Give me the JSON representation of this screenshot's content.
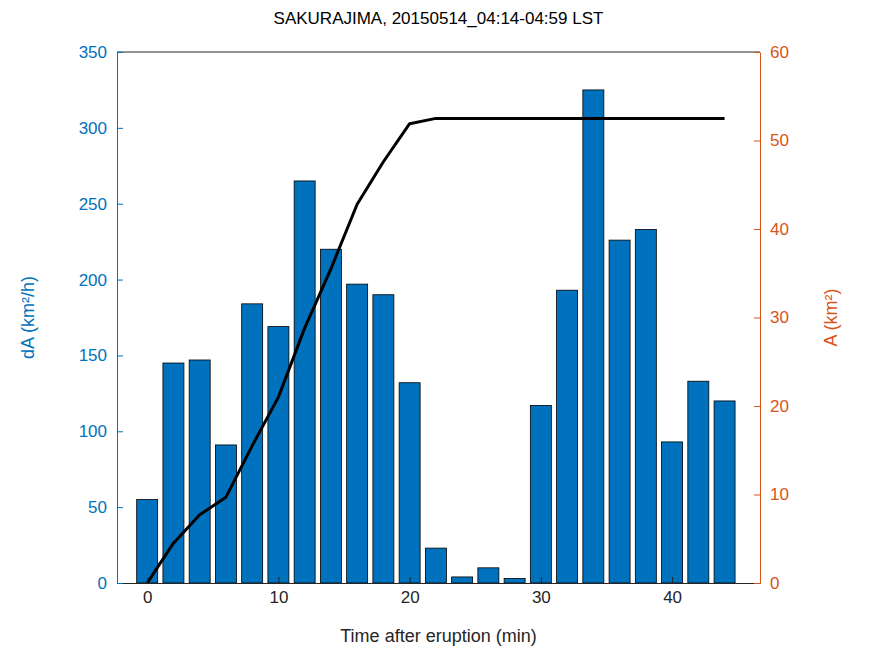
{
  "chart_data": {
    "type": "bar",
    "title": "SAKURAJIMA, 20150514_04:14-04:59 LST",
    "x_label": "Time after eruption (min)",
    "y_label": "dA (km²/h)",
    "y2_label": "A (km²)",
    "x": [
      0,
      2,
      4,
      6,
      8,
      10,
      12,
      14,
      16,
      18,
      20,
      22,
      24,
      26,
      28,
      30,
      32,
      34,
      36,
      38,
      40,
      42,
      44
    ],
    "series": [
      {
        "type": "bar",
        "color": "#0072bd",
        "values": [
          55,
          145,
          147,
          91,
          184,
          169,
          265,
          220,
          197,
          190,
          132,
          23,
          4,
          10,
          3,
          117,
          193,
          325,
          226,
          233,
          93,
          133,
          120
        ]
      },
      {
        "type": "line",
        "color": "#000000",
        "axis": "y2",
        "values": [
          0,
          4.5,
          7.7,
          9.7,
          15.5,
          21,
          28.8,
          35.5,
          42.8,
          47.6,
          51.9,
          52.5,
          52.5,
          52.5,
          52.5,
          52.5,
          52.5,
          52.5,
          52.5,
          52.5,
          52.5,
          52.5,
          52.5
        ]
      }
    ],
    "xlim": [
      -2.3,
      46.7
    ],
    "xticks": [
      0,
      10,
      20,
      30,
      40
    ],
    "ylim": [
      0,
      350
    ],
    "yticks": [
      0,
      50,
      100,
      150,
      200,
      250,
      300,
      350
    ],
    "y2lim": [
      0,
      60
    ],
    "y2ticks": [
      0,
      10,
      20,
      30,
      40,
      50,
      60
    ]
  }
}
